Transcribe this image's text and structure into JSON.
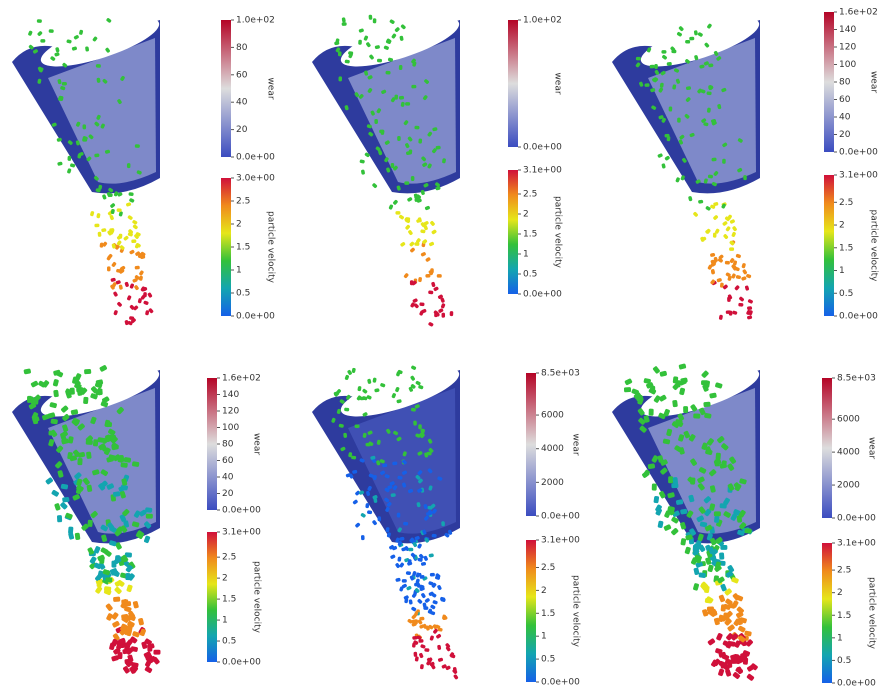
{
  "panels": [
    {
      "wear": {
        "title": "wear",
        "range": [
          0,
          100
        ],
        "ticks": [
          {
            "value": 0,
            "label": "0.0e+00"
          },
          20,
          40,
          60,
          80,
          {
            "value": 100,
            "label": "1.0e+02"
          }
        ]
      },
      "velocity": {
        "title": "particle velocity",
        "range": [
          0,
          3
        ],
        "ticks": [
          {
            "value": 0,
            "label": "0.0e+00"
          },
          0.5,
          1,
          1.5,
          2,
          2.5,
          {
            "value": 3,
            "label": "3.0e+00"
          }
        ]
      }
    },
    {
      "wear": {
        "title": "wear",
        "range": [
          0,
          100
        ],
        "ticks": [
          {
            "value": 0,
            "label": "0.0e+00"
          },
          {
            "value": 100,
            "label": "1.0e+02"
          }
        ]
      },
      "velocity": {
        "title": "particle velocity",
        "range": [
          0,
          3.1
        ],
        "ticks": [
          {
            "value": 0,
            "label": "0.0e+00"
          },
          0.5,
          1,
          1.5,
          2,
          2.5,
          {
            "value": 3.1,
            "label": "3.1e+00"
          }
        ]
      }
    },
    {
      "wear": {
        "title": "wear",
        "range": [
          0,
          160
        ],
        "ticks": [
          {
            "value": 0,
            "label": "0.0e+00"
          },
          20,
          40,
          60,
          80,
          100,
          120,
          140,
          {
            "value": 160,
            "label": "1.6e+02"
          }
        ]
      },
      "velocity": {
        "title": "particle velocity",
        "range": [
          0,
          3.1
        ],
        "ticks": [
          {
            "value": 0,
            "label": "0.0e+00"
          },
          0.5,
          1,
          1.5,
          2,
          2.5,
          {
            "value": 3.1,
            "label": "3.1e+00"
          }
        ]
      }
    },
    {
      "wear": {
        "title": "wear",
        "range": [
          0,
          160
        ],
        "ticks": [
          {
            "value": 0,
            "label": "0.0e+00"
          },
          20,
          40,
          60,
          80,
          100,
          120,
          140,
          {
            "value": 160,
            "label": "1.6e+02"
          }
        ]
      },
      "velocity": {
        "title": "particle velocity",
        "range": [
          0,
          3.1
        ],
        "ticks": [
          {
            "value": 0,
            "label": "0.0e+00"
          },
          0.5,
          1,
          1.5,
          2,
          2.5,
          {
            "value": 3.1,
            "label": "3.1e+00"
          }
        ]
      }
    },
    {
      "wear": {
        "title": "wear",
        "range": [
          0,
          8500
        ],
        "ticks": [
          {
            "value": 0,
            "label": "0.0e+00"
          },
          2000,
          4000,
          6000,
          {
            "value": 8500,
            "label": "8.5e+03"
          }
        ]
      },
      "velocity": {
        "title": "particle velocity",
        "range": [
          0,
          3.1
        ],
        "ticks": [
          {
            "value": 0,
            "label": "0.0e+00"
          },
          0.5,
          1,
          1.5,
          2,
          2.5,
          {
            "value": 3.1,
            "label": "3.1e+00"
          }
        ]
      }
    },
    {
      "wear": {
        "title": "wear",
        "range": [
          0,
          8500
        ],
        "ticks": [
          {
            "value": 0,
            "label": "0.0e+00"
          },
          2000,
          4000,
          6000,
          {
            "value": 8500,
            "label": "8.5e+03"
          }
        ]
      },
      "velocity": {
        "title": "particle velocity",
        "range": [
          0,
          3.1
        ],
        "ticks": [
          {
            "value": 0,
            "label": "0.0e+00"
          },
          0.5,
          1,
          1.5,
          2,
          2.5,
          {
            "value": 3.1,
            "label": "3.1e+00"
          }
        ]
      }
    }
  ]
}
